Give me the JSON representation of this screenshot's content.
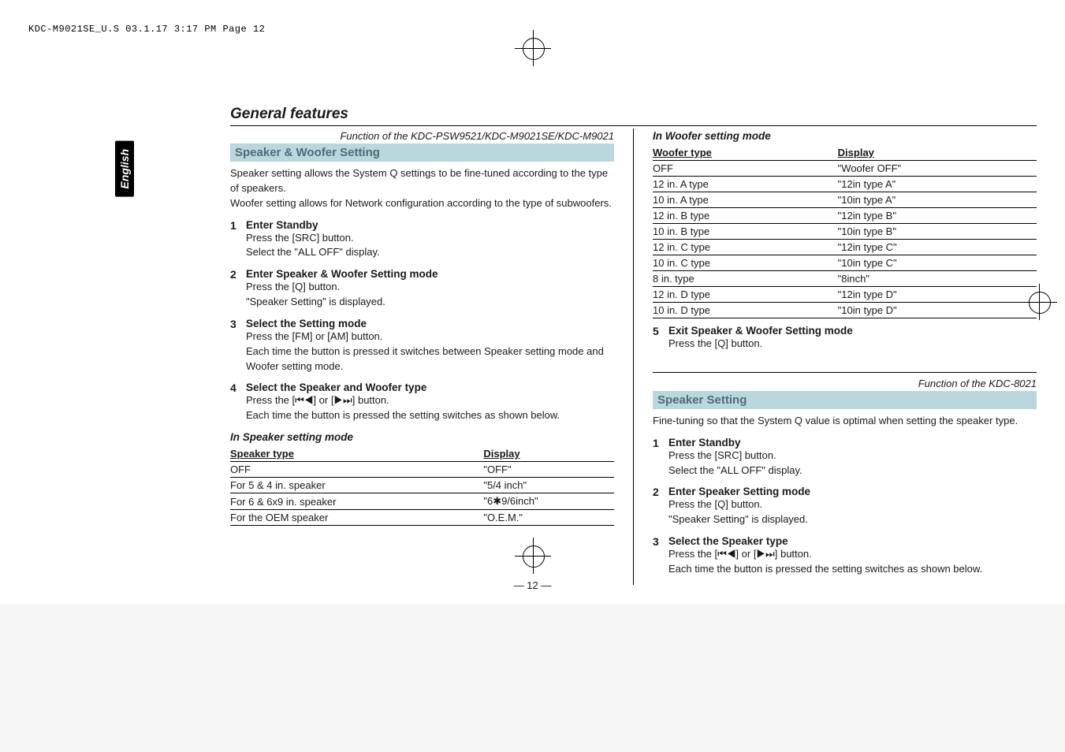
{
  "print_header": "KDC-M9021SE_U.S  03.1.17  3:17 PM  Page 12",
  "section_title": "General features",
  "sidebar_tab": "English",
  "left": {
    "function_note": "Function of the KDC-PSW9521/KDC-M9021SE/KDC-M9021",
    "block_title": "Speaker & Woofer Setting",
    "lead": "Speaker setting allows the System Q settings to be fine-tuned according to the type of speakers.\nWoofer setting allows for Network configuration according to the type of subwoofers.",
    "steps": [
      {
        "title": "Enter Standby",
        "body": "Press the [SRC] button.\nSelect the \"ALL OFF\" display."
      },
      {
        "title": "Enter Speaker & Woofer Setting mode",
        "body": "Press the [Q] button.\n\"Speaker Setting\" is displayed."
      },
      {
        "title": "Select the Setting mode",
        "body": "Press the [FM] or [AM] button.\nEach time the button is pressed it switches between Speaker setting mode and Woofer setting mode."
      },
      {
        "title": "Select the Speaker and Woofer type",
        "body": "Press the [⏮◀] or [▶⏭] button.\nEach time the button is pressed the setting switches as shown below."
      }
    ],
    "speaker_mode_heading": "In Speaker setting mode",
    "speaker_table": {
      "cols": [
        "Speaker type",
        "Display"
      ],
      "rows": [
        [
          "OFF",
          "\"OFF\""
        ],
        [
          "For 5 & 4 in. speaker",
          "\"5/4 inch\""
        ],
        [
          "For 6 & 6x9 in. speaker",
          "\"6✱9/6inch\""
        ],
        [
          "For the OEM speaker",
          "\"O.E.M.\""
        ]
      ]
    }
  },
  "right_top": {
    "woofer_mode_heading": "In Woofer setting mode",
    "woofer_table": {
      "cols": [
        "Woofer type",
        "Display"
      ],
      "rows": [
        [
          "OFF",
          "\"Woofer OFF\""
        ],
        [
          "12 in. A type",
          "\"12in type A\""
        ],
        [
          "10 in. A type",
          "\"10in type A\""
        ],
        [
          "12 in. B type",
          "\"12in type B\""
        ],
        [
          "10 in. B type",
          "\"10in type B\""
        ],
        [
          "12 in. C type",
          "\"12in type C\""
        ],
        [
          "10 in. C type",
          "\"10in type C\""
        ],
        [
          "8 in. type",
          "\"8inch\""
        ],
        [
          "12 in. D type",
          "\"12in type D\""
        ],
        [
          "10 in. D type",
          "\"10in type D\""
        ]
      ]
    },
    "step5": {
      "num": "5",
      "title": "Exit Speaker & Woofer Setting mode",
      "body": "Press the [Q] button."
    }
  },
  "right_bottom": {
    "function_note": "Function of the KDC-8021",
    "block_title": "Speaker Setting",
    "lead": "Fine-tuning so that the System Q value is optimal when setting the speaker type.",
    "steps": [
      {
        "title": "Enter Standby",
        "body": "Press the [SRC] button.\nSelect the \"ALL OFF\" display."
      },
      {
        "title": "Enter Speaker Setting mode",
        "body": "Press the [Q] button.\n\"Speaker Setting\" is displayed."
      },
      {
        "title": "Select the Speaker type",
        "body": "Press the [⏮◀] or [▶⏭] button.\nEach time the button is pressed the setting switches as shown below."
      }
    ]
  },
  "page_number": "— 12 —"
}
